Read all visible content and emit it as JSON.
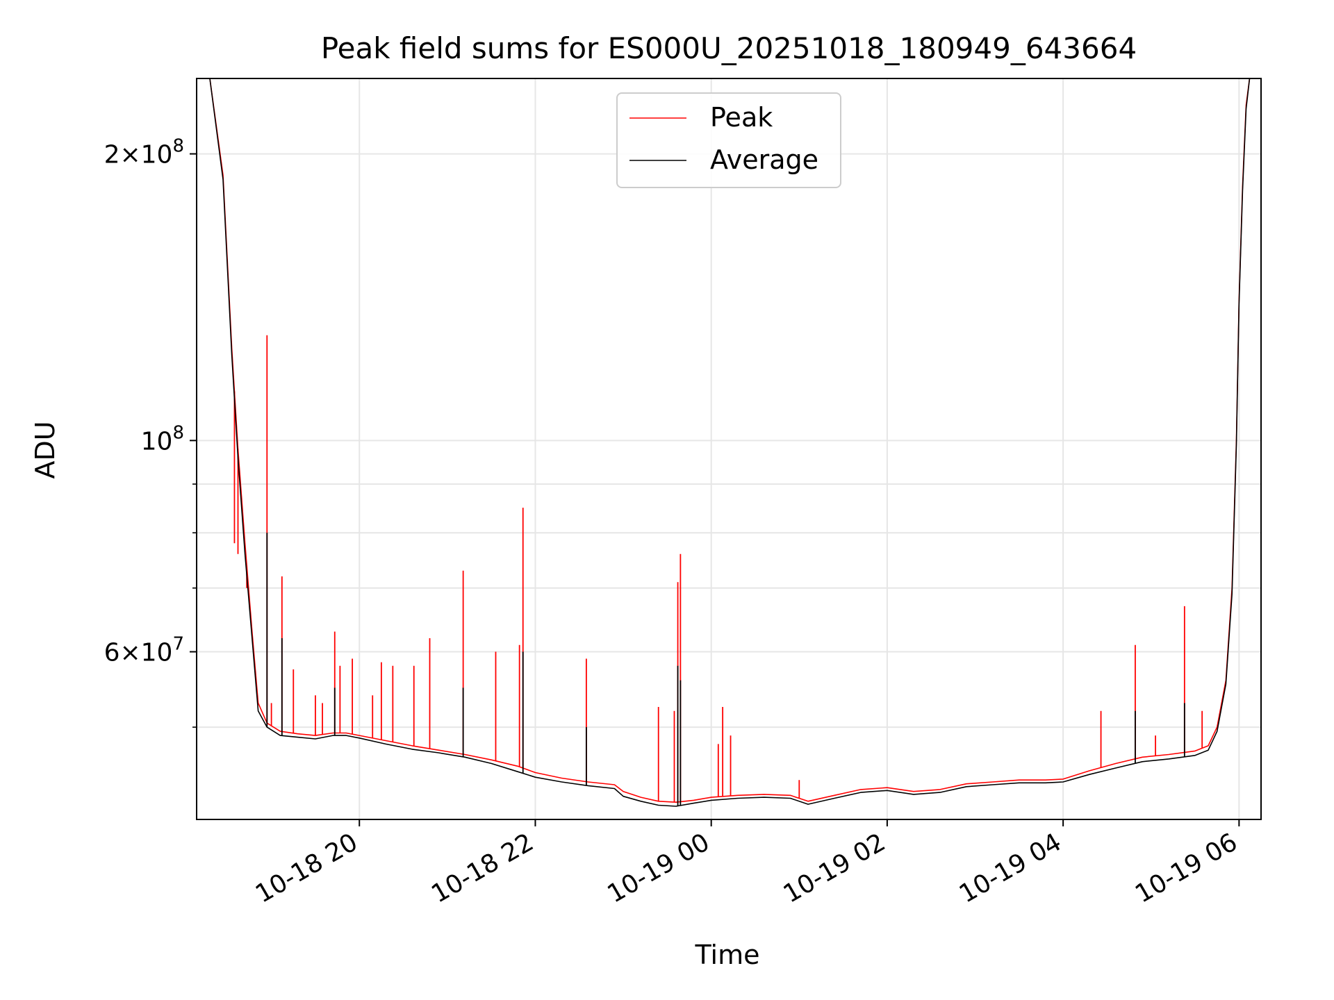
{
  "chart_data": {
    "type": "line",
    "title": "Peak field sums for ES000U_20251018_180949_643664",
    "xlabel": "Time",
    "ylabel": "ADU",
    "yscale": "log",
    "ylim": [
      40000000,
      240000000
    ],
    "xlim_hours": [
      18.15,
      30.25
    ],
    "x_unit": "hours since 2025-10-18 00:00",
    "grid": true,
    "legend_position": "top-center",
    "x_ticks": [
      {
        "value": 20,
        "label": "10-18 20"
      },
      {
        "value": 22,
        "label": "10-18 22"
      },
      {
        "value": 24,
        "label": "10-19 00"
      },
      {
        "value": 26,
        "label": "10-19 02"
      },
      {
        "value": 28,
        "label": "10-19 04"
      },
      {
        "value": 30,
        "label": "10-19 06"
      }
    ],
    "y_major_ticks": [
      {
        "value": 200000000,
        "mantissa": "2",
        "base": "10",
        "exp": "8"
      },
      {
        "value": 100000000,
        "mantissa": "",
        "base": "10",
        "exp": "8"
      },
      {
        "value": 60000000,
        "mantissa": "6",
        "base": "10",
        "exp": "7"
      }
    ],
    "y_minor_ticks": [
      90000000,
      80000000,
      70000000,
      50000000
    ],
    "series": [
      {
        "name": "Peak",
        "color": "#ff0000",
        "x": [
          18.15,
          18.3,
          18.45,
          18.55,
          18.62,
          18.7,
          18.78,
          18.85,
          18.95,
          19.1,
          19.3,
          19.5,
          19.7,
          19.85,
          20.0,
          20.3,
          20.6,
          20.9,
          21.2,
          21.5,
          21.8,
          22.0,
          22.3,
          22.6,
          22.9,
          23.0,
          23.2,
          23.4,
          23.6,
          23.8,
          24.0,
          24.3,
          24.6,
          24.9,
          25.1,
          25.4,
          25.7,
          26.0,
          26.3,
          26.6,
          26.9,
          27.2,
          27.5,
          27.8,
          28.0,
          28.3,
          28.6,
          28.9,
          29.2,
          29.5,
          29.65,
          29.75,
          29.85,
          29.92,
          29.97,
          30.0,
          30.04,
          30.08,
          30.12,
          30.25
        ],
        "y": [
          240000000,
          240000000,
          190000000,
          125000000,
          98000000,
          78000000,
          63000000,
          53000000,
          50500000,
          49500000,
          49200000,
          49000000,
          49300000,
          49300000,
          49000000,
          48400000,
          47800000,
          47300000,
          46800000,
          46200000,
          45500000,
          44800000,
          44200000,
          43800000,
          43500000,
          42800000,
          42200000,
          41800000,
          41700000,
          41900000,
          42200000,
          42400000,
          42500000,
          42400000,
          41800000,
          42400000,
          43000000,
          43200000,
          42800000,
          43000000,
          43600000,
          43800000,
          44000000,
          44000000,
          44100000,
          45000000,
          45800000,
          46500000,
          46800000,
          47200000,
          47800000,
          50000000,
          56000000,
          70000000,
          100000000,
          140000000,
          185000000,
          225000000,
          240000000,
          240000000
        ],
        "spikes": [
          {
            "x": 18.58,
            "y": 78000000
          },
          {
            "x": 18.62,
            "y": 76000000
          },
          {
            "x": 18.72,
            "y": 70000000
          },
          {
            "x": 18.95,
            "y": 129000000
          },
          {
            "x": 19.0,
            "y": 53000000
          },
          {
            "x": 19.12,
            "y": 72000000
          },
          {
            "x": 19.25,
            "y": 57500000
          },
          {
            "x": 19.5,
            "y": 54000000
          },
          {
            "x": 19.58,
            "y": 53000000
          },
          {
            "x": 19.72,
            "y": 63000000
          },
          {
            "x": 19.78,
            "y": 58000000
          },
          {
            "x": 19.92,
            "y": 59000000
          },
          {
            "x": 20.15,
            "y": 54000000
          },
          {
            "x": 20.25,
            "y": 58500000
          },
          {
            "x": 20.38,
            "y": 58000000
          },
          {
            "x": 20.62,
            "y": 58000000
          },
          {
            "x": 20.8,
            "y": 62000000
          },
          {
            "x": 21.18,
            "y": 73000000
          },
          {
            "x": 21.55,
            "y": 60000000
          },
          {
            "x": 21.82,
            "y": 61000000
          },
          {
            "x": 21.86,
            "y": 85000000
          },
          {
            "x": 22.58,
            "y": 59000000
          },
          {
            "x": 23.4,
            "y": 52500000
          },
          {
            "x": 23.58,
            "y": 52000000
          },
          {
            "x": 23.62,
            "y": 71000000
          },
          {
            "x": 23.65,
            "y": 76000000
          },
          {
            "x": 24.08,
            "y": 48000000
          },
          {
            "x": 24.13,
            "y": 52500000
          },
          {
            "x": 24.22,
            "y": 49000000
          },
          {
            "x": 25.0,
            "y": 44000000
          },
          {
            "x": 28.43,
            "y": 52000000
          },
          {
            "x": 28.82,
            "y": 61000000
          },
          {
            "x": 29.05,
            "y": 49000000
          },
          {
            "x": 29.38,
            "y": 67000000
          },
          {
            "x": 29.58,
            "y": 52000000
          }
        ]
      },
      {
        "name": "Average",
        "color": "#000000",
        "x": [
          18.15,
          18.3,
          18.45,
          18.55,
          18.62,
          18.7,
          18.78,
          18.85,
          18.95,
          19.1,
          19.3,
          19.5,
          19.7,
          19.85,
          20.0,
          20.3,
          20.6,
          20.9,
          21.2,
          21.5,
          21.8,
          22.0,
          22.3,
          22.6,
          22.9,
          23.0,
          23.2,
          23.4,
          23.6,
          23.8,
          24.0,
          24.3,
          24.6,
          24.9,
          25.1,
          25.4,
          25.7,
          26.0,
          26.3,
          26.6,
          26.9,
          27.2,
          27.5,
          27.8,
          28.0,
          28.3,
          28.6,
          28.9,
          29.2,
          29.5,
          29.65,
          29.75,
          29.85,
          29.92,
          29.97,
          30.0,
          30.04,
          30.08,
          30.12,
          30.25
        ],
        "y": [
          240000000,
          240000000,
          188000000,
          123000000,
          96000000,
          76000000,
          62000000,
          52000000,
          50000000,
          49000000,
          48800000,
          48600000,
          49000000,
          49000000,
          48700000,
          48000000,
          47400000,
          47000000,
          46500000,
          45800000,
          44900000,
          44300000,
          43800000,
          43400000,
          43100000,
          42300000,
          41800000,
          41400000,
          41300000,
          41600000,
          41900000,
          42100000,
          42200000,
          42100000,
          41500000,
          42100000,
          42700000,
          42900000,
          42500000,
          42700000,
          43300000,
          43500000,
          43700000,
          43700000,
          43800000,
          44600000,
          45300000,
          46000000,
          46300000,
          46700000,
          47300000,
          49500000,
          55500000,
          69000000,
          99000000,
          139000000,
          183000000,
          223000000,
          240000000,
          240000000
        ],
        "spikes": [
          {
            "x": 18.95,
            "y": 80000000
          },
          {
            "x": 19.12,
            "y": 62000000
          },
          {
            "x": 19.72,
            "y": 55000000
          },
          {
            "x": 21.18,
            "y": 55000000
          },
          {
            "x": 21.86,
            "y": 60000000
          },
          {
            "x": 22.58,
            "y": 50000000
          },
          {
            "x": 23.62,
            "y": 58000000
          },
          {
            "x": 23.65,
            "y": 56000000
          },
          {
            "x": 28.82,
            "y": 52000000
          },
          {
            "x": 29.38,
            "y": 53000000
          }
        ]
      }
    ]
  }
}
